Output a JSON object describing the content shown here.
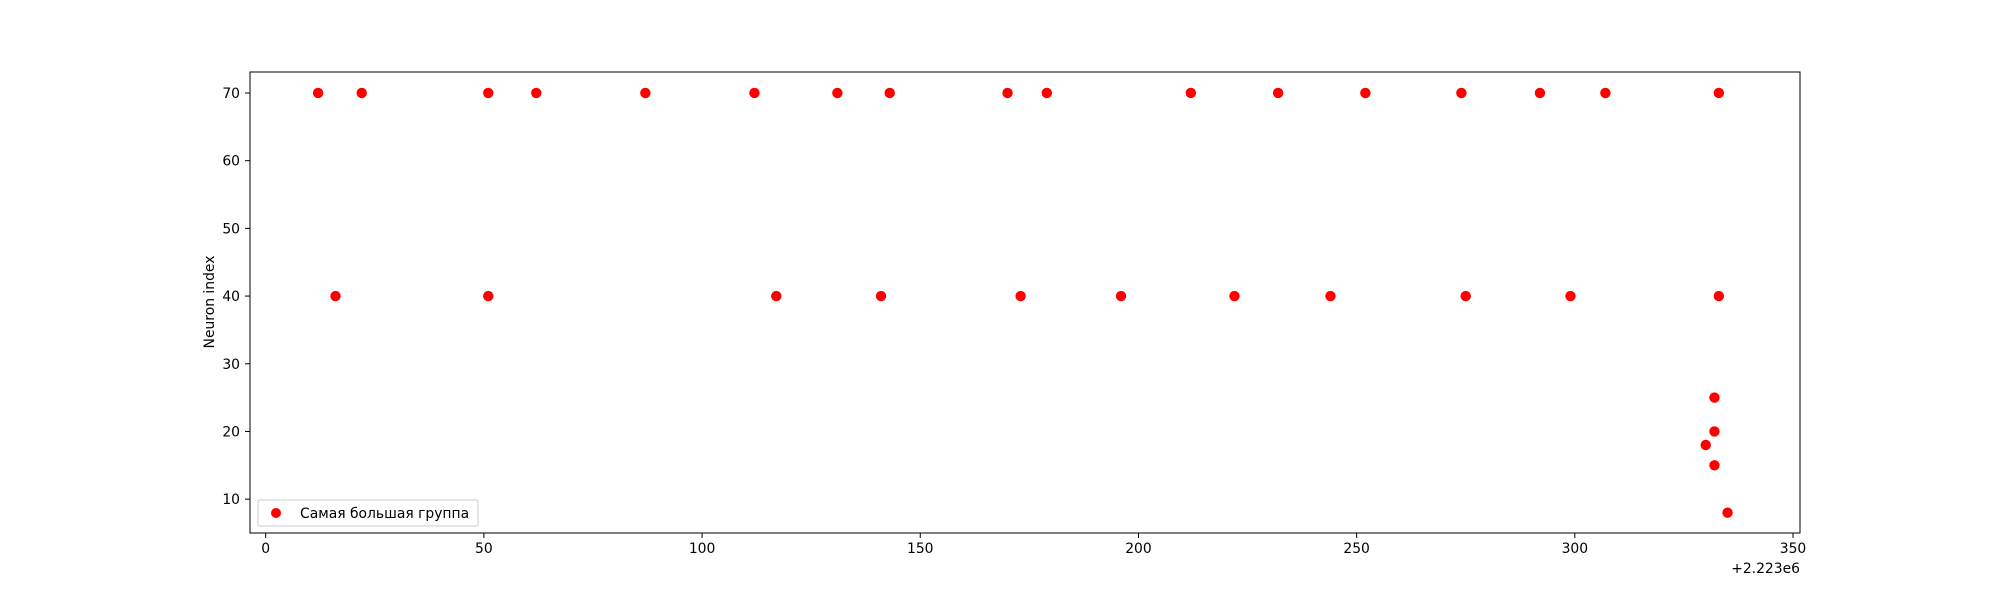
{
  "chart_data": {
    "type": "scatter",
    "title": "",
    "xlabel": "",
    "ylabel": "Neuron index",
    "x_offset_label": "+2.223e6",
    "x_ticks": [
      0,
      50,
      100,
      150,
      200,
      250,
      300,
      350
    ],
    "y_ticks": [
      10,
      20,
      30,
      40,
      50,
      60,
      70
    ],
    "xlim": [
      2222996.4,
      2223351.6
    ],
    "ylim": [
      5.0,
      73.1
    ],
    "grid": false,
    "legend": "lower-left",
    "series": [
      {
        "name": "Самая большая группа",
        "color": "#ff0000",
        "points": [
          {
            "x": 2223012,
            "y": 70
          },
          {
            "x": 2223022,
            "y": 70
          },
          {
            "x": 2223051,
            "y": 70
          },
          {
            "x": 2223062,
            "y": 70
          },
          {
            "x": 2223087,
            "y": 70
          },
          {
            "x": 2223112,
            "y": 70
          },
          {
            "x": 2223131,
            "y": 70
          },
          {
            "x": 2223143,
            "y": 70
          },
          {
            "x": 2223170,
            "y": 70
          },
          {
            "x": 2223179,
            "y": 70
          },
          {
            "x": 2223212,
            "y": 70
          },
          {
            "x": 2223232,
            "y": 70
          },
          {
            "x": 2223252,
            "y": 70
          },
          {
            "x": 2223274,
            "y": 70
          },
          {
            "x": 2223292,
            "y": 70
          },
          {
            "x": 2223307,
            "y": 70
          },
          {
            "x": 2223333,
            "y": 70
          },
          {
            "x": 2223016,
            "y": 40
          },
          {
            "x": 2223051,
            "y": 40
          },
          {
            "x": 2223117,
            "y": 40
          },
          {
            "x": 2223141,
            "y": 40
          },
          {
            "x": 2223173,
            "y": 40
          },
          {
            "x": 2223196,
            "y": 40
          },
          {
            "x": 2223222,
            "y": 40
          },
          {
            "x": 2223244,
            "y": 40
          },
          {
            "x": 2223275,
            "y": 40
          },
          {
            "x": 2223299,
            "y": 40
          },
          {
            "x": 2223333,
            "y": 40
          },
          {
            "x": 2223332,
            "y": 25
          },
          {
            "x": 2223332,
            "y": 20
          },
          {
            "x": 2223330,
            "y": 18
          },
          {
            "x": 2223332,
            "y": 15
          },
          {
            "x": 2223335,
            "y": 8
          }
        ]
      }
    ]
  }
}
